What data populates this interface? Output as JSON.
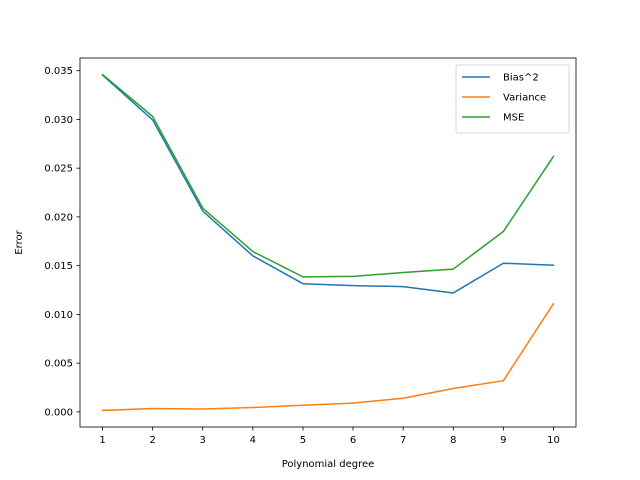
{
  "chart_data": {
    "type": "line",
    "title": "",
    "xlabel": "Polynomial degree",
    "ylabel": "Error",
    "x": [
      1,
      2,
      3,
      4,
      5,
      6,
      7,
      8,
      9,
      10
    ],
    "xlim": [
      0.55,
      10.45
    ],
    "ylim": [
      -0.00155,
      0.0363
    ],
    "xticks": [
      "1",
      "2",
      "3",
      "4",
      "5",
      "6",
      "7",
      "8",
      "9",
      "10"
    ],
    "yticks": [
      "0.000",
      "0.005",
      "0.010",
      "0.015",
      "0.020",
      "0.025",
      "0.030",
      "0.035"
    ],
    "grid": false,
    "legend_position": "top-right",
    "series": [
      {
        "name": "Bias^2",
        "color": "#1f77b4",
        "values": [
          0.03455,
          0.02995,
          0.0206,
          0.016,
          0.01315,
          0.01295,
          0.01285,
          0.0122,
          0.01525,
          0.01505
        ]
      },
      {
        "name": "Variance",
        "color": "#ff7f0e",
        "values": [
          0.00015,
          0.00035,
          0.0003,
          0.00045,
          0.00068,
          0.0009,
          0.0014,
          0.0024,
          0.0032,
          0.0111
        ]
      },
      {
        "name": "MSE",
        "color": "#2ca02c",
        "values": [
          0.0346,
          0.0303,
          0.0209,
          0.01645,
          0.01385,
          0.0139,
          0.0143,
          0.01465,
          0.0185,
          0.0262
        ]
      }
    ]
  }
}
